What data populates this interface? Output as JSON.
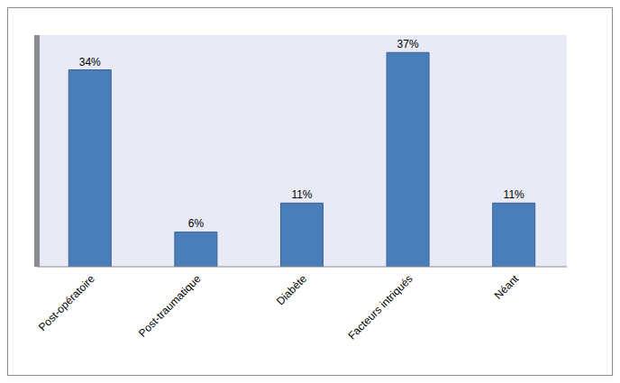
{
  "chart_data": {
    "type": "bar",
    "categories": [
      "Post-opératoire",
      "Post-traumatique",
      "Diabète",
      "Facteurs intriqués",
      "Néant"
    ],
    "values": [
      34,
      6,
      11,
      37,
      11
    ],
    "value_labels": [
      "34%",
      "6%",
      "11%",
      "37%",
      "11%"
    ],
    "data_labels": true,
    "color": "#4a7ebb",
    "ylim": [
      0,
      40
    ],
    "tick_labels": "x"
  }
}
